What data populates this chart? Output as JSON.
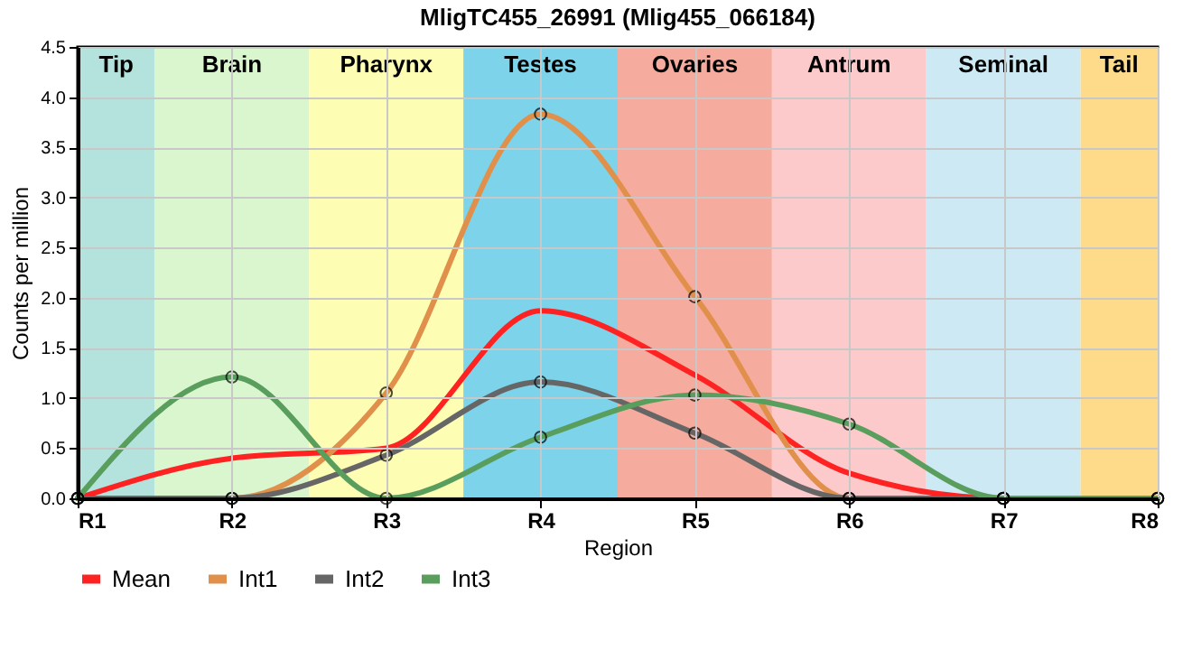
{
  "chart_data": {
    "type": "line",
    "title": "MligTC455_26991 (Mlig455_066184)",
    "xlabel": "Region",
    "ylabel": "Counts per million",
    "categories": [
      "R1",
      "R2",
      "R3",
      "R4",
      "R5",
      "R6",
      "R7",
      "R8"
    ],
    "ylim": [
      0,
      4.5
    ],
    "yticks": [
      {
        "value": 0,
        "label": "0.0"
      },
      {
        "value": 0.5,
        "label": "0.5"
      },
      {
        "value": 1,
        "label": "1.0"
      },
      {
        "value": 1.5,
        "label": "1.5"
      },
      {
        "value": 2,
        "label": "2.0"
      },
      {
        "value": 2.5,
        "label": "2.5"
      },
      {
        "value": 3,
        "label": "3.0"
      },
      {
        "value": 3.5,
        "label": "3.5"
      },
      {
        "value": 4,
        "label": "4.0"
      },
      {
        "value": 4.5,
        "label": "4.5"
      }
    ],
    "grid": true,
    "legend": "bottom left",
    "line_style": "solid",
    "series": [
      {
        "name": "Mean",
        "color": "#ff2222",
        "marker": "none",
        "values": [
          0,
          0.4,
          0.5,
          1.87,
          1.23,
          0.25,
          0,
          0
        ]
      },
      {
        "name": "Int1",
        "color": "#e0904a",
        "marker": "circle",
        "values": [
          0,
          0,
          1.05,
          3.83,
          2.01,
          0,
          0,
          0
        ]
      },
      {
        "name": "Int2",
        "color": "#666666",
        "marker": "circle",
        "values": [
          0,
          0,
          0.43,
          1.16,
          0.65,
          0,
          0,
          0
        ]
      },
      {
        "name": "Int3",
        "color": "#5a9e5e",
        "marker": "circle",
        "values": [
          0,
          1.21,
          0,
          0.61,
          1.03,
          0.74,
          0,
          0
        ]
      }
    ],
    "bands": [
      {
        "axis": "x",
        "from": "R1",
        "to": "R1",
        "label": "Tip",
        "color": "#b4e3de"
      },
      {
        "axis": "x",
        "from": "R2",
        "to": "R2",
        "label": "Brain",
        "color": "#d9f6cf"
      },
      {
        "axis": "x",
        "from": "R3",
        "to": "R3",
        "label": "Pharynx",
        "color": "#fdfdb4"
      },
      {
        "axis": "x",
        "from": "R4",
        "to": "R4",
        "label": "Testes",
        "color": "#7dd3ea"
      },
      {
        "axis": "x",
        "from": "R5",
        "to": "R5",
        "label": "Ovaries",
        "color": "#f5ab9d"
      },
      {
        "axis": "x",
        "from": "R6",
        "to": "R6",
        "label": "Antrum",
        "color": "#fdcacb"
      },
      {
        "axis": "x",
        "from": "R7",
        "to": "R7",
        "label": "Seminal",
        "color": "#cdeaf4"
      },
      {
        "axis": "x",
        "from": "R8",
        "to": "R8",
        "label": "Tail",
        "color": "#fddb8b"
      }
    ]
  }
}
